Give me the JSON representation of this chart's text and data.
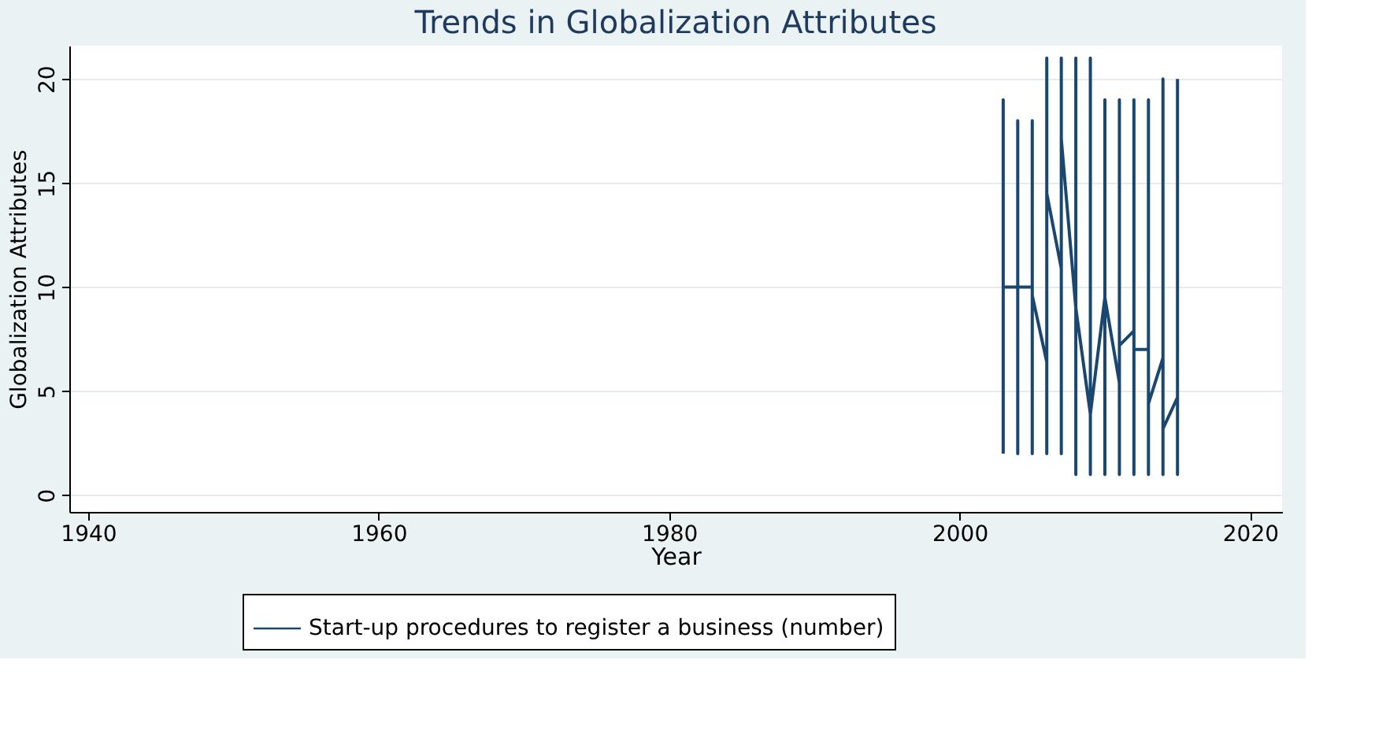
{
  "chart_data": {
    "type": "line",
    "title": "Trends in Globalization Attributes",
    "xlabel": "Year",
    "ylabel": "Globalization Attributes",
    "x": [
      2003,
      2003,
      2003,
      2004,
      2004,
      2004,
      2004,
      2005,
      2005,
      2005,
      2005,
      2006,
      2006,
      2006,
      2006,
      2007,
      2007,
      2007,
      2007,
      2008,
      2008,
      2008,
      2008,
      2009,
      2009,
      2009,
      2009,
      2010,
      2010,
      2010,
      2010,
      2011,
      2011,
      2011,
      2011,
      2012,
      2012,
      2012,
      2012,
      2013,
      2013,
      2013,
      2013,
      2014,
      2014,
      2014,
      2014,
      2015,
      2015,
      2015
    ],
    "series": [
      {
        "name": "Start-up procedures to register a business (number)",
        "color": "#1a476f",
        "values": [
          2,
          19,
          10,
          10,
          2,
          18,
          10,
          10,
          2,
          18,
          9.6,
          6.4,
          2,
          21,
          14.5,
          10.9,
          2,
          21,
          17.1,
          9,
          1,
          21,
          9,
          3.9,
          1,
          21,
          3.9,
          9.5,
          1,
          19,
          9.5,
          5.4,
          1,
          19,
          7.2,
          7.9,
          1,
          19,
          7,
          7,
          1,
          19,
          4.4,
          6.6,
          1,
          20,
          3.2,
          4.7,
          1,
          20
        ]
      }
    ],
    "xlim": [
      1938.7,
      2022.2
    ],
    "xticks": [
      1940,
      1960,
      1980,
      2000,
      2020
    ],
    "ylim": [
      -0.8,
      21.6
    ],
    "yticks": [
      0,
      5,
      10,
      15,
      20
    ],
    "grid": "y",
    "legend": "bottom",
    "marker": "none",
    "line_style": "solid"
  }
}
